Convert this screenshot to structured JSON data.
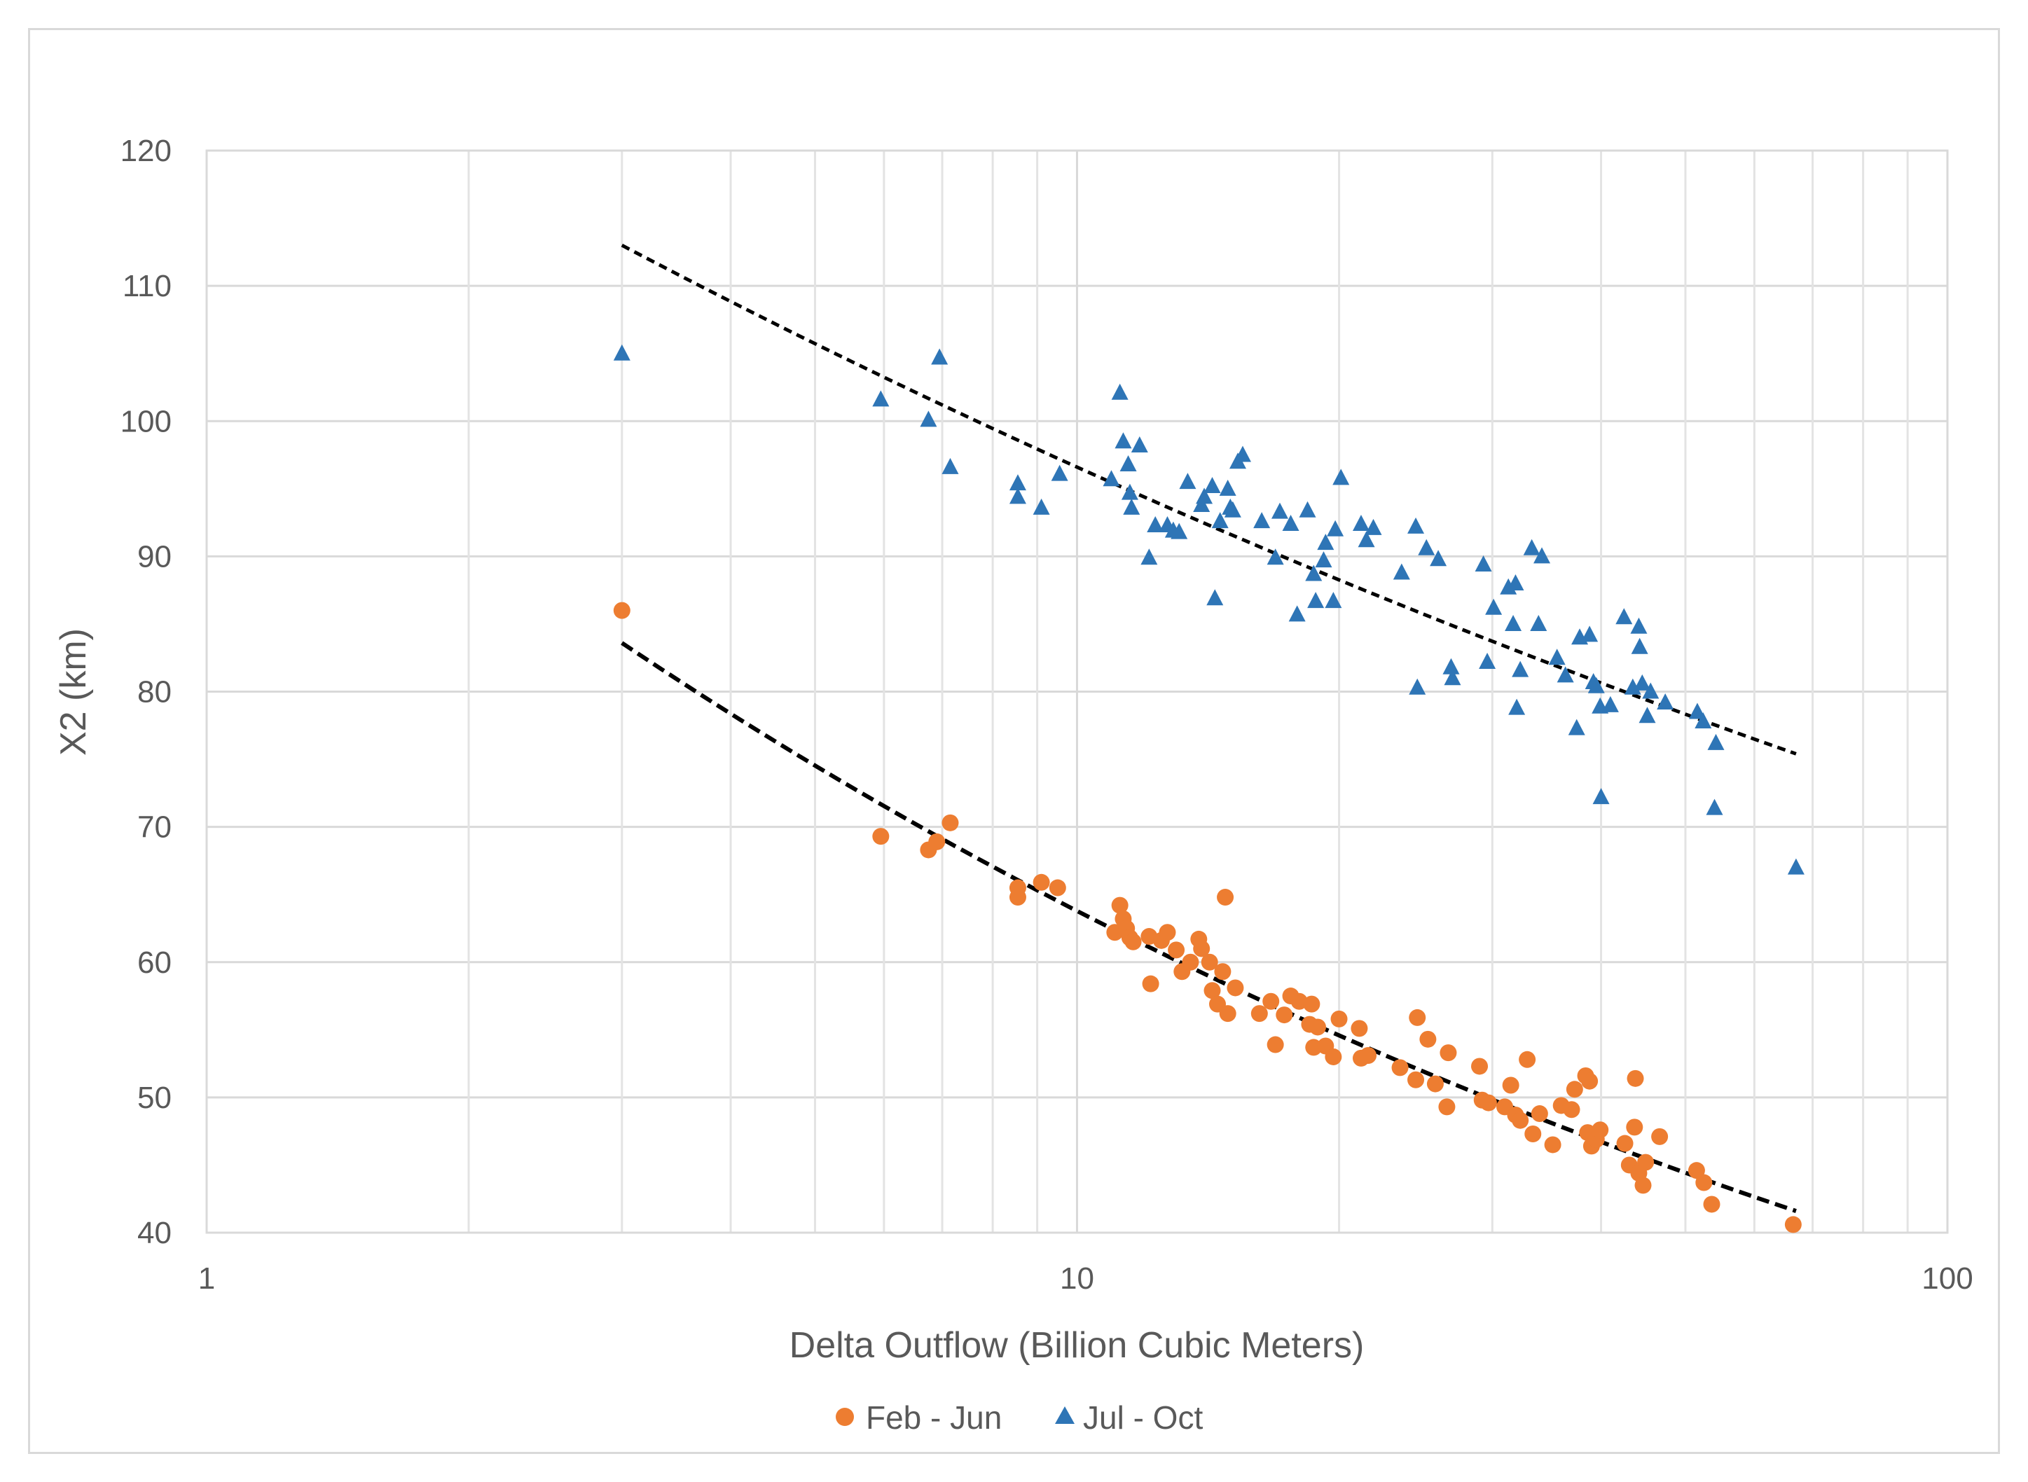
{
  "chart_data": {
    "type": "scatter",
    "title": "",
    "xlabel": "Delta Outflow (Billion Cubic Meters)",
    "ylabel": "X2 (km)",
    "xscale": "log",
    "xlim": [
      1,
      100
    ],
    "ylim": [
      40,
      120
    ],
    "x_ticks": [
      1,
      10,
      100
    ],
    "x_tick_labels": [
      "1",
      "10",
      "100"
    ],
    "y_ticks": [
      40,
      50,
      60,
      70,
      80,
      90,
      100,
      110,
      120
    ],
    "y_tick_labels": [
      "40",
      "50",
      "60",
      "70",
      "80",
      "90",
      "100",
      "110",
      "120"
    ],
    "grid": "on",
    "legend": {
      "position": "bottom-center",
      "entries": [
        "Feb - Jun",
        "Jul - Oct"
      ]
    },
    "series": [
      {
        "name": "Feb - Jun",
        "marker": "circle",
        "color": "#ED7D31",
        "points": [
          [
            3.0,
            86.0
          ],
          [
            5.95,
            69.3
          ],
          [
            6.75,
            68.3
          ],
          [
            6.9,
            68.9
          ],
          [
            7.15,
            70.3
          ],
          [
            8.55,
            65.5
          ],
          [
            8.55,
            64.8
          ],
          [
            9.1,
            65.9
          ],
          [
            9.5,
            65.5
          ],
          [
            11.05,
            62.2
          ],
          [
            11.2,
            64.2
          ],
          [
            11.3,
            63.2
          ],
          [
            11.4,
            62.5
          ],
          [
            11.5,
            61.8
          ],
          [
            11.6,
            61.5
          ],
          [
            12.1,
            61.9
          ],
          [
            12.15,
            58.4
          ],
          [
            12.5,
            61.6
          ],
          [
            12.7,
            62.2
          ],
          [
            13.0,
            60.9
          ],
          [
            13.2,
            59.3
          ],
          [
            13.5,
            60.0
          ],
          [
            13.8,
            61.7
          ],
          [
            13.9,
            61.0
          ],
          [
            14.2,
            60.0
          ],
          [
            14.3,
            57.9
          ],
          [
            14.5,
            56.9
          ],
          [
            14.7,
            59.3
          ],
          [
            14.8,
            64.8
          ],
          [
            14.9,
            56.2
          ],
          [
            15.2,
            58.1
          ],
          [
            16.2,
            56.2
          ],
          [
            16.7,
            57.1
          ],
          [
            16.9,
            53.9
          ],
          [
            17.3,
            56.1
          ],
          [
            17.6,
            57.5
          ],
          [
            18.0,
            57.1
          ],
          [
            18.5,
            55.4
          ],
          [
            18.6,
            56.9
          ],
          [
            18.7,
            53.7
          ],
          [
            18.9,
            55.2
          ],
          [
            19.3,
            53.8
          ],
          [
            19.7,
            53.0
          ],
          [
            20.0,
            55.8
          ],
          [
            21.1,
            55.1
          ],
          [
            21.2,
            52.9
          ],
          [
            21.6,
            53.1
          ],
          [
            23.5,
            52.2
          ],
          [
            24.5,
            51.3
          ],
          [
            24.6,
            55.9
          ],
          [
            25.3,
            54.3
          ],
          [
            25.8,
            51.0
          ],
          [
            26.6,
            49.3
          ],
          [
            26.7,
            53.3
          ],
          [
            29.0,
            52.3
          ],
          [
            29.2,
            49.8
          ],
          [
            29.7,
            49.6
          ],
          [
            31.0,
            49.3
          ],
          [
            31.5,
            50.9
          ],
          [
            31.9,
            48.7
          ],
          [
            32.3,
            48.3
          ],
          [
            32.9,
            52.8
          ],
          [
            33.4,
            47.3
          ],
          [
            34.0,
            48.8
          ],
          [
            35.2,
            46.5
          ],
          [
            36.0,
            49.4
          ],
          [
            37.0,
            49.1
          ],
          [
            37.3,
            50.6
          ],
          [
            38.4,
            51.6
          ],
          [
            38.6,
            47.4
          ],
          [
            38.8,
            51.2
          ],
          [
            39.0,
            46.4
          ],
          [
            39.2,
            47.0
          ],
          [
            39.5,
            46.9
          ],
          [
            39.9,
            47.6
          ],
          [
            42.6,
            46.6
          ],
          [
            43.1,
            45.0
          ],
          [
            43.7,
            47.8
          ],
          [
            43.8,
            51.4
          ],
          [
            44.2,
            44.4
          ],
          [
            44.7,
            43.5
          ],
          [
            45.0,
            45.2
          ],
          [
            46.7,
            47.1
          ],
          [
            51.5,
            44.6
          ],
          [
            52.5,
            43.7
          ],
          [
            53.6,
            42.1
          ],
          [
            66.5,
            40.6
          ]
        ]
      },
      {
        "name": "Jul - Oct",
        "marker": "triangle",
        "color": "#2E75B6",
        "points": [
          [
            3.0,
            105.0
          ],
          [
            5.95,
            101.6
          ],
          [
            6.75,
            100.1
          ],
          [
            6.95,
            104.7
          ],
          [
            7.15,
            96.6
          ],
          [
            8.55,
            95.4
          ],
          [
            8.55,
            94.4
          ],
          [
            9.1,
            93.6
          ],
          [
            9.55,
            96.1
          ],
          [
            10.95,
            95.7
          ],
          [
            11.2,
            102.1
          ],
          [
            11.3,
            98.5
          ],
          [
            11.45,
            96.8
          ],
          [
            11.5,
            94.7
          ],
          [
            11.55,
            93.6
          ],
          [
            11.8,
            98.2
          ],
          [
            12.1,
            89.9
          ],
          [
            12.3,
            92.3
          ],
          [
            12.7,
            92.3
          ],
          [
            12.9,
            91.9
          ],
          [
            13.1,
            91.8
          ],
          [
            13.4,
            95.5
          ],
          [
            13.9,
            93.8
          ],
          [
            14.0,
            94.4
          ],
          [
            14.3,
            95.2
          ],
          [
            14.4,
            86.9
          ],
          [
            14.6,
            92.6
          ],
          [
            14.9,
            95.0
          ],
          [
            15.0,
            93.6
          ],
          [
            15.1,
            93.4
          ],
          [
            15.3,
            97.0
          ],
          [
            15.5,
            97.5
          ],
          [
            16.3,
            92.6
          ],
          [
            16.9,
            89.9
          ],
          [
            17.1,
            93.3
          ],
          [
            17.6,
            92.4
          ],
          [
            17.9,
            85.7
          ],
          [
            18.4,
            93.4
          ],
          [
            18.7,
            88.7
          ],
          [
            18.8,
            86.7
          ],
          [
            19.2,
            89.7
          ],
          [
            19.3,
            91.0
          ],
          [
            19.7,
            86.7
          ],
          [
            19.8,
            92.0
          ],
          [
            20.1,
            95.8
          ],
          [
            21.2,
            92.4
          ],
          [
            21.5,
            91.2
          ],
          [
            21.9,
            92.1
          ],
          [
            23.6,
            88.8
          ],
          [
            24.5,
            92.2
          ],
          [
            24.6,
            80.3
          ],
          [
            25.2,
            90.6
          ],
          [
            26.0,
            89.8
          ],
          [
            26.9,
            81.8
          ],
          [
            27.0,
            81.0
          ],
          [
            29.3,
            89.4
          ],
          [
            29.6,
            82.2
          ],
          [
            30.1,
            86.2
          ],
          [
            31.3,
            87.7
          ],
          [
            31.7,
            85.0
          ],
          [
            31.9,
            88.0
          ],
          [
            32.0,
            78.8
          ],
          [
            32.3,
            81.6
          ],
          [
            33.3,
            90.6
          ],
          [
            33.9,
            85.0
          ],
          [
            34.2,
            90.0
          ],
          [
            35.6,
            82.5
          ],
          [
            36.4,
            81.2
          ],
          [
            37.5,
            77.3
          ],
          [
            37.8,
            84.0
          ],
          [
            38.8,
            84.2
          ],
          [
            39.2,
            80.7
          ],
          [
            39.5,
            80.4
          ],
          [
            39.9,
            78.9
          ],
          [
            40.0,
            72.2
          ],
          [
            41.0,
            79.0
          ],
          [
            42.5,
            85.5
          ],
          [
            43.5,
            80.3
          ],
          [
            44.2,
            84.8
          ],
          [
            44.3,
            83.3
          ],
          [
            44.6,
            80.6
          ],
          [
            45.2,
            78.2
          ],
          [
            45.6,
            80.0
          ],
          [
            47.4,
            79.2
          ],
          [
            51.6,
            78.5
          ],
          [
            52.4,
            77.8
          ],
          [
            54.0,
            71.4
          ],
          [
            54.2,
            76.2
          ],
          [
            67.0,
            67.0
          ]
        ]
      }
    ],
    "trendlines": [
      {
        "name": "Feb - Jun trend",
        "style": "dashed",
        "color": "#000000",
        "x_range": [
          3.0,
          67.0
        ],
        "y_start": 83.6,
        "y_end": 41.6
      },
      {
        "name": "Jul - Oct trend",
        "style": "dashed",
        "color": "#000000",
        "x_range": [
          3.0,
          67.0
        ],
        "y_start": 113.0,
        "y_end": 75.4
      }
    ]
  }
}
